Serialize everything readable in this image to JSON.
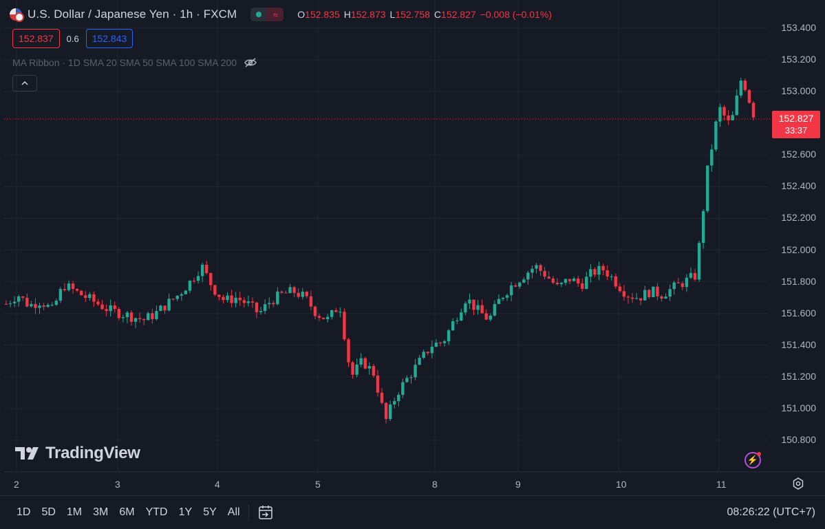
{
  "header": {
    "symbol_title": "U.S. Dollar / Japanese Yen · 1h · FXCM",
    "ohlc": {
      "o_label": "O",
      "o_value": "152.835",
      "h_label": "H",
      "h_value": "152.873",
      "l_label": "L",
      "l_value": "152.758",
      "c_label": "C",
      "c_value": "152.827",
      "change": "−0.008 (−0.01%)"
    }
  },
  "quote": {
    "sell": "152.837",
    "spread": "0.6",
    "buy": "152.843"
  },
  "indicator": {
    "label": "MA Ribbon · 1D SMA 20 SMA 50 SMA 100 SMA 200"
  },
  "price_scale": [
    "153.400",
    "153.200",
    "153.000",
    "152.600",
    "152.400",
    "152.200",
    "152.000",
    "151.800",
    "151.600",
    "151.400",
    "151.200",
    "151.000",
    "150.800"
  ],
  "current_price": {
    "price": "152.827",
    "countdown": "33:37"
  },
  "time_scale": [
    "2",
    "3",
    "4",
    "5",
    "8",
    "9",
    "10",
    "11"
  ],
  "logo": {
    "text": "TradingView"
  },
  "bottom_bar": {
    "ranges": [
      "1D",
      "5D",
      "1M",
      "3M",
      "6M",
      "YTD",
      "1Y",
      "5Y",
      "All"
    ],
    "clock": "08:26:22 (UTC+7)"
  },
  "colors": {
    "up": "#22ab94",
    "down": "#f23645",
    "background": "#161a25",
    "grid": "#222631"
  },
  "chart_data": {
    "type": "candlestick",
    "title": "U.S. Dollar / Japanese Yen · 1h · FXCM",
    "ylim": [
      150.7,
      153.45
    ],
    "x_ticks": [
      "2",
      "3",
      "4",
      "5",
      "8",
      "9",
      "10",
      "11"
    ],
    "close_path": [
      151.66,
      151.72,
      151.65,
      151.68,
      151.62,
      151.78,
      151.74,
      151.7,
      151.66,
      151.62,
      151.6,
      151.58,
      151.56,
      151.6,
      151.66,
      151.72,
      151.8,
      151.9,
      151.76,
      151.68,
      151.7,
      151.66,
      151.6,
      151.68,
      151.72,
      151.74,
      151.7,
      151.6,
      151.56,
      151.66,
      151.2,
      151.3,
      151.22,
      150.92,
      151.1,
      151.2,
      151.3,
      151.4,
      151.42,
      151.56,
      151.7,
      151.62,
      151.56,
      151.7,
      151.78,
      151.84,
      151.9,
      151.84,
      151.76,
      151.82,
      151.78,
      151.86,
      151.88,
      151.8,
      151.72,
      151.7,
      151.74,
      151.72,
      151.76,
      151.8,
      151.84,
      152.5,
      152.9,
      152.78,
      153.1,
      152.86
    ]
  }
}
